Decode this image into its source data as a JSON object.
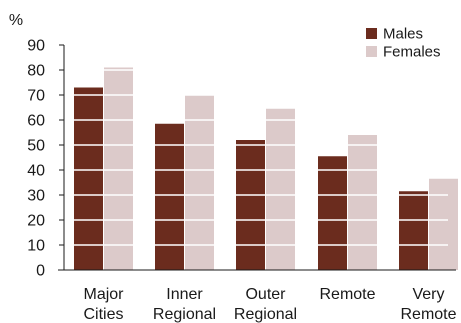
{
  "chart_data": {
    "type": "bar",
    "ylabel": "%",
    "xlabel": "",
    "title": "",
    "ylim": [
      0,
      90
    ],
    "yticks": [
      0,
      10,
      20,
      30,
      40,
      50,
      60,
      70,
      80,
      90
    ],
    "grid": true,
    "legend_position": "top-right",
    "categories": [
      [
        "Major",
        "Cities"
      ],
      [
        "Inner",
        "Regional"
      ],
      [
        "Outer",
        "Regional"
      ],
      [
        "Remote"
      ],
      [
        "Very",
        "Remote"
      ]
    ],
    "series": [
      {
        "name": "Males",
        "color": "#6b2c1e",
        "values": [
          73.0,
          58.5,
          52.0,
          45.5,
          31.5
        ]
      },
      {
        "name": "Females",
        "color": "#dccaca",
        "values": [
          81.0,
          70.0,
          64.5,
          54.0,
          36.5
        ]
      }
    ]
  }
}
